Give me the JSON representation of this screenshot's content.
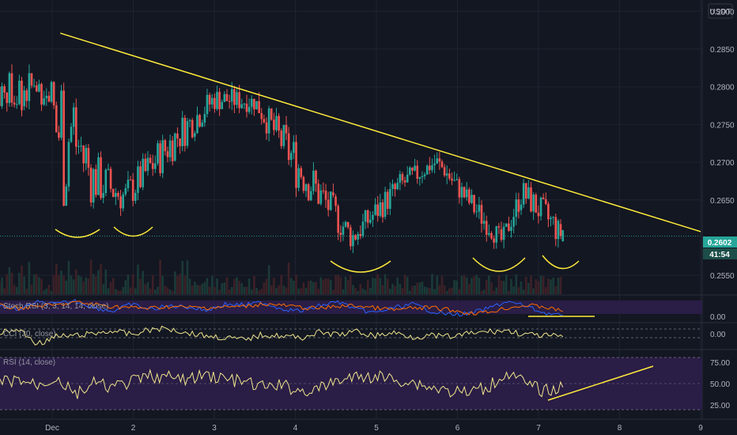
{
  "currency": "USDT",
  "colors": {
    "background": "#131722",
    "grid": "#1f2330",
    "up": "#26a69a",
    "down": "#ef5350",
    "trendline": "#ffeb3b",
    "annotation": "#ffeb3b",
    "price_badge": "#26a69a",
    "stoch_k": "#2962ff",
    "stoch_d": "#ff6d00",
    "indicator_line": "#f0e68c",
    "indicator_bg": "#2a1d46"
  },
  "chart_data": [
    {
      "type": "candlestick",
      "title": "",
      "x_ticks": [
        "Dec",
        "2",
        "3",
        "4",
        "5",
        "6",
        "7",
        "8",
        "9"
      ],
      "y_ticks": [
        "0.2900",
        "0.2850",
        "0.2800",
        "0.2750",
        "0.2700",
        "0.2650",
        "0.2602",
        "0.2550"
      ],
      "ylim": [
        0.2525,
        0.2915
      ],
      "last_price": "0.2602",
      "countdown": "41:54",
      "grid": true,
      "key_points": [
        {
          "day": 1.0,
          "low": 0.2612,
          "high": 0.288
        },
        {
          "day": 1.25,
          "low": 0.261,
          "high": 0.287
        },
        {
          "day": 1.5,
          "low": 0.264,
          "high": 0.272
        },
        {
          "day": 1.9,
          "low": 0.2628,
          "high": 0.268
        },
        {
          "day": 2.5,
          "low": 0.27,
          "high": 0.276
        },
        {
          "day": 3.0,
          "low": 0.2765,
          "high": 0.2803
        },
        {
          "day": 3.5,
          "low": 0.2765,
          "high": 0.2795
        },
        {
          "day": 4.0,
          "low": 0.266,
          "high": 0.274
        },
        {
          "day": 4.7,
          "low": 0.258,
          "high": 0.262
        },
        {
          "day": 5.3,
          "low": 0.265,
          "high": 0.269
        },
        {
          "day": 5.75,
          "low": 0.269,
          "high": 0.2712
        },
        {
          "day": 6.2,
          "low": 0.262,
          "high": 0.266
        },
        {
          "day": 6.55,
          "low": 0.258,
          "high": 0.261
        },
        {
          "day": 6.8,
          "low": 0.264,
          "high": 0.268
        },
        {
          "day": 7.2,
          "low": 0.259,
          "high": 0.264
        },
        {
          "day": 7.3,
          "low": 0.2592,
          "high": 0.261
        }
      ],
      "trendline": [
        {
          "day": 1.1,
          "price": 0.2871
        },
        {
          "day": 9.0,
          "price": 0.2608
        }
      ]
    },
    {
      "type": "line",
      "title": "Stoch RSI (3, 3, 14, 14, close)",
      "y_ticks": [
        "0.00"
      ],
      "series": [
        {
          "name": "",
          "values": [
            60,
            40,
            80,
            70,
            90,
            50,
            30,
            70,
            40,
            60,
            55,
            35,
            70,
            65,
            80,
            45,
            30,
            60,
            85,
            40,
            20,
            50,
            70,
            30,
            10,
            15,
            45,
            85,
            60,
            20,
            5
          ]
        }
      ]
    },
    {
      "type": "line",
      "title": "CCI (20, close)",
      "y_ticks": [
        "0.00"
      ],
      "series": [
        {
          "name": "",
          "values": [
            30,
            60,
            -80,
            -10,
            0,
            20,
            50,
            10,
            60,
            70,
            30,
            0,
            -20,
            -40,
            10,
            0,
            -20,
            30,
            10,
            40,
            0,
            30,
            -10,
            0,
            -10,
            20,
            40,
            50,
            10,
            0,
            -10
          ]
        }
      ]
    },
    {
      "type": "line",
      "title": "RSI (14, close)",
      "y_ticks": [
        "75.00",
        "50.00",
        "25.00"
      ],
      "ylim": [
        15,
        85
      ],
      "series": [
        {
          "name": "",
          "values": [
            52,
            55,
            48,
            58,
            35,
            50,
            45,
            52,
            60,
            58,
            55,
            62,
            56,
            52,
            45,
            48,
            40,
            42,
            55,
            58,
            60,
            56,
            52,
            45,
            40,
            38,
            45,
            65,
            50,
            40,
            45
          ]
        }
      ]
    }
  ]
}
